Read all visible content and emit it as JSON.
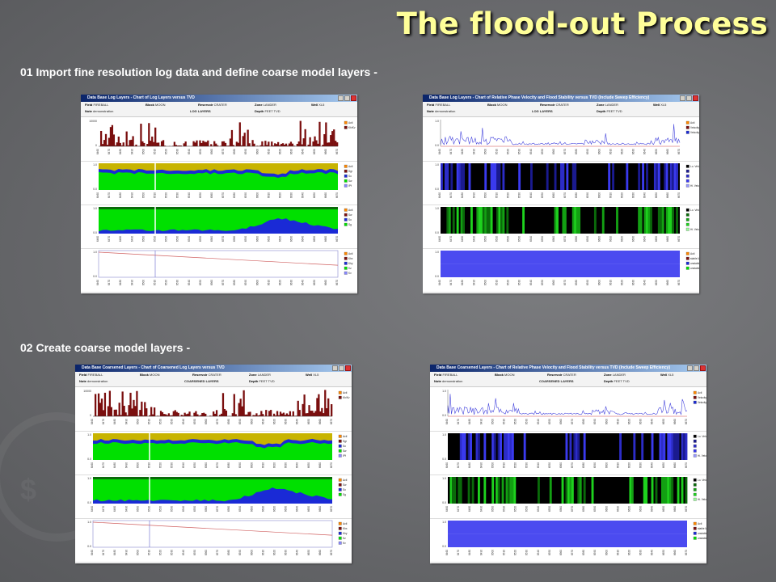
{
  "slide": {
    "title": "The flood-out Process",
    "step1": "01 Import fine resolution log data and define coarse model layers -",
    "step2": "02 Create coarse model layers -"
  },
  "meta_labels": {
    "field": "Field",
    "block": "Block",
    "reservoir": "Reservoir",
    "zone": "Zone",
    "well": "Well",
    "note": "Note",
    "depth": "Depth"
  },
  "meta_values": {
    "field": "FIREBALL",
    "block": "MOON",
    "reservoir": "CRATER",
    "zone": "LANDER",
    "well": "XL5",
    "note": "demonstration",
    "depth": "FEET TVD"
  },
  "windows": [
    {
      "id": "log-layers",
      "title": "Data Base Log Layers - Chart of Log Layers versus TVD",
      "section": "LOG LAYERS",
      "panels": [
        {
          "kind": "log",
          "ytop": "10000",
          "ybot": "0",
          "legend": [
            "Actl",
            "Kh/Kv"
          ]
        },
        {
          "kind": "sat",
          "legend": [
            "Actl",
            "Sgr",
            "So",
            "Sw",
            "IPf"
          ]
        },
        {
          "kind": "sat2",
          "legend": [
            "Actl",
            "Sw",
            "So",
            "Sg"
          ]
        },
        {
          "kind": "line",
          "legend": [
            "Actl",
            "Khx",
            "Khy",
            "Kz",
            "Kv"
          ]
        }
      ]
    },
    {
      "id": "velocity-log",
      "title": "Data Base Log Layers - Chart of Relative Phase Velocity and Flood Stability versus TVD (Include Sweep Efficiency)",
      "section": "LOG LAYERS",
      "panels": [
        {
          "kind": "vel",
          "legend": [
            "Actl",
            "Velocity(w)",
            "Velocity(o)"
          ]
        },
        {
          "kind": "blue",
          "legend": [
            "Lo. Velocity(w)",
            "",
            "",
            "",
            "Hi. Velocity(w)"
          ]
        },
        {
          "kind": "green",
          "legend": [
            "Lo. Velocity(o)",
            "",
            "",
            "",
            "Hi. Velocity(o)"
          ]
        },
        {
          "kind": "stab",
          "legend": [
            "Actl",
            "stable  M < 1",
            "unstable M > 1",
            "unstable M > 2"
          ]
        }
      ]
    },
    {
      "id": "coarsened-layers",
      "title": "Data Base Coarsened Layers - Chart of Coarsened Log Layers versus TVD",
      "section": "COARSENED LAYERS",
      "panels": [
        {
          "kind": "log",
          "ytop": "10000",
          "ybot": "0",
          "legend": [
            "Actl",
            "Kh/Kv"
          ]
        },
        {
          "kind": "sat",
          "legend": [
            "Actl",
            "Sgr",
            "So",
            "Sw",
            "IPf"
          ]
        },
        {
          "kind": "sat2",
          "legend": [
            "Actl",
            "Sw",
            "So",
            "Sg"
          ]
        },
        {
          "kind": "line",
          "legend": [
            "Actl",
            "Khx",
            "Khy",
            "Kz",
            "Kv"
          ]
        }
      ]
    },
    {
      "id": "velocity-coarsened",
      "title": "Data Base Coarsened Layers - Chart of Relative Phase Velocity and Flood Stability versus TVD (Include Sweep Efficiency)",
      "section": "COARSENED LAYERS",
      "panels": [
        {
          "kind": "vel",
          "legend": [
            "Actl",
            "Velocity(w)",
            "Velocity(o)"
          ]
        },
        {
          "kind": "blue",
          "legend": [
            "Lo. Velocity(w)",
            "",
            "",
            "",
            "Hi. Velocity(w)"
          ]
        },
        {
          "kind": "green",
          "legend": [
            "Lo. Velocity(o)",
            "",
            "",
            "",
            "Hi. Velocity(o)"
          ]
        },
        {
          "kind": "stab",
          "legend": [
            "Actl",
            "stable  M < 1",
            "unstable M > 1",
            "unstable M > 2"
          ]
        }
      ]
    }
  ],
  "colors": {
    "title": "#ffff99",
    "log_bars": "#7a0e0e",
    "sat_yellow": "#c8b400",
    "sat_blue": "#1a2ad6",
    "sat_green": "#00e000",
    "line_red": "#d06060",
    "velocity": "#4444dd",
    "stab_blue": "#4b4bf0"
  }
}
